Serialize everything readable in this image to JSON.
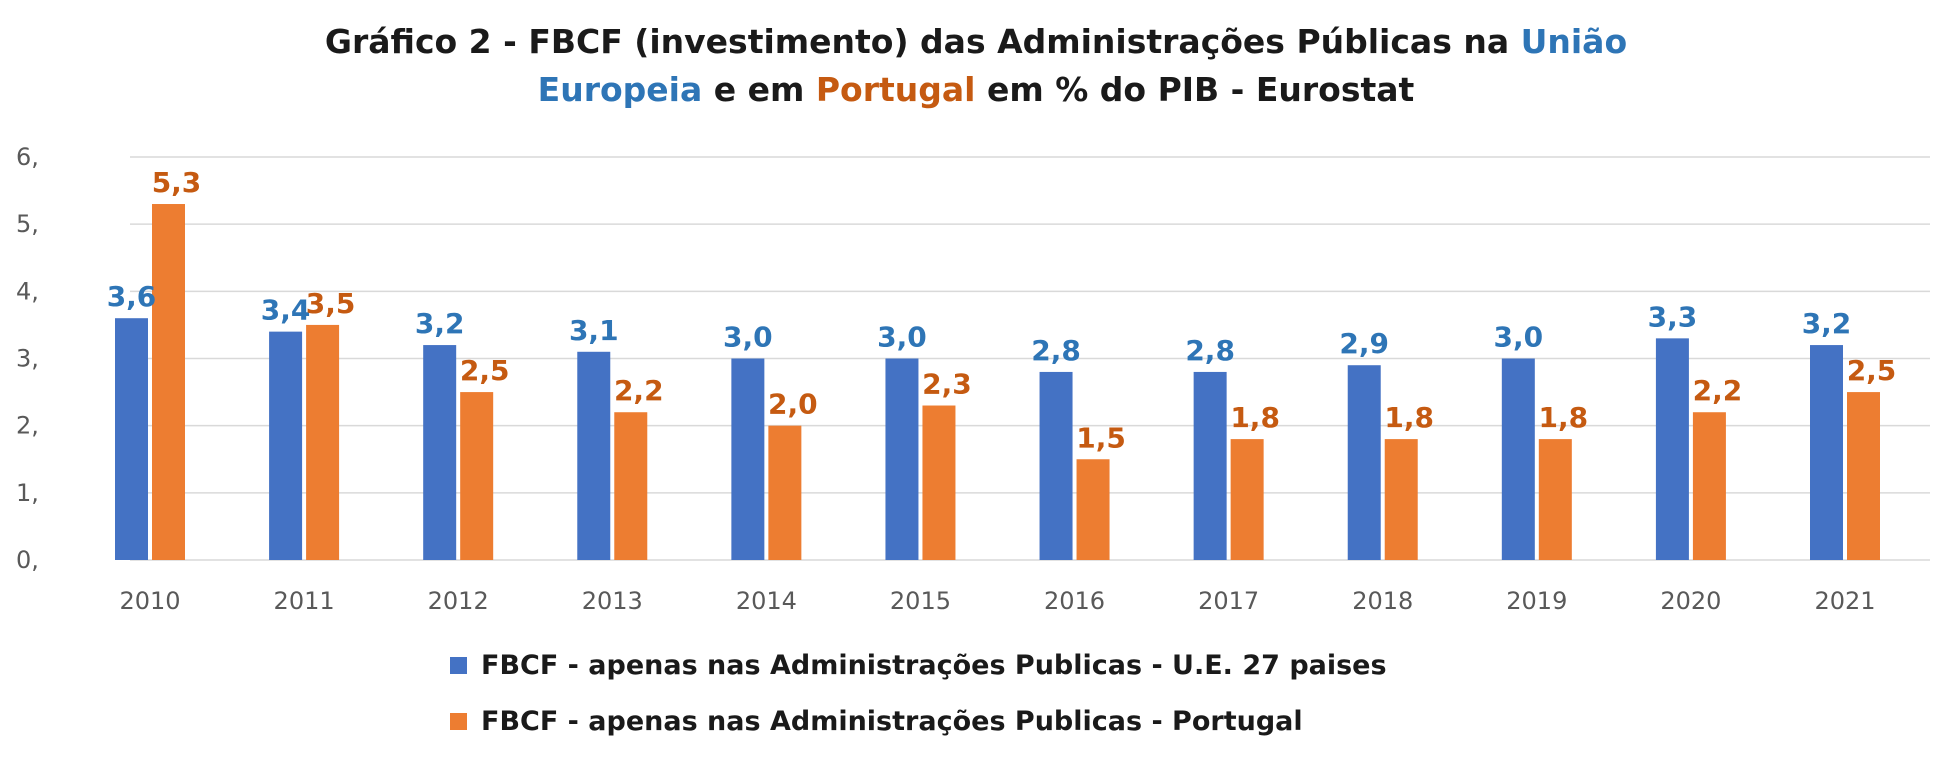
{
  "title": {
    "line1_prefix": "Gráfico 2 - FBCF (investimento) das Administrações Públicas na ",
    "line1_eu": "União",
    "line2_eu": "Europeia",
    "line2_mid": " e em ",
    "line2_pt": "Portugal",
    "line2_suffix": " em % do PIB - Eurostat"
  },
  "colors": {
    "eu": "#4472C4",
    "pt": "#ED7D31",
    "eu_label": "#2E75B6",
    "pt_label": "#C55A11",
    "grid": "#D9D9D9"
  },
  "chart_data": {
    "type": "bar",
    "title": "Gráfico 2 - FBCF (investimento) das Administrações Públicas na União Europeia e em Portugal em % do PIB - Eurostat",
    "categories": [
      "2010",
      "2011",
      "2012",
      "2013",
      "2014",
      "2015",
      "2016",
      "2017",
      "2018",
      "2019",
      "2020",
      "2021"
    ],
    "series": [
      {
        "name": "FBCF - apenas nas Administrações Publicas - U.E. 27 paises",
        "values": [
          3.6,
          3.4,
          3.2,
          3.1,
          3.0,
          3.0,
          2.8,
          2.8,
          2.9,
          3.0,
          3.3,
          3.2
        ],
        "labels": [
          "3,6",
          "3,4",
          "3,2",
          "3,1",
          "3,0",
          "3,0",
          "2,8",
          "2,8",
          "2,9",
          "3,0",
          "3,3",
          "3,2"
        ]
      },
      {
        "name": "FBCF - apenas nas Administrações Publicas - Portugal",
        "values": [
          5.3,
          3.5,
          2.5,
          2.2,
          2.0,
          2.3,
          1.5,
          1.8,
          1.8,
          1.8,
          2.2,
          2.5
        ],
        "labels": [
          "5,3",
          "3,5",
          "2,5",
          "2,2",
          "2,0",
          "2,3",
          "1,5",
          "1,8",
          "1,8",
          "1,8",
          "2,2",
          "2,5"
        ]
      }
    ],
    "yticks": [
      "0,",
      "1,",
      "2,",
      "3,",
      "4,",
      "5,",
      "6,"
    ],
    "ylim": [
      0,
      6
    ],
    "grid": true,
    "legend_position": "bottom"
  }
}
